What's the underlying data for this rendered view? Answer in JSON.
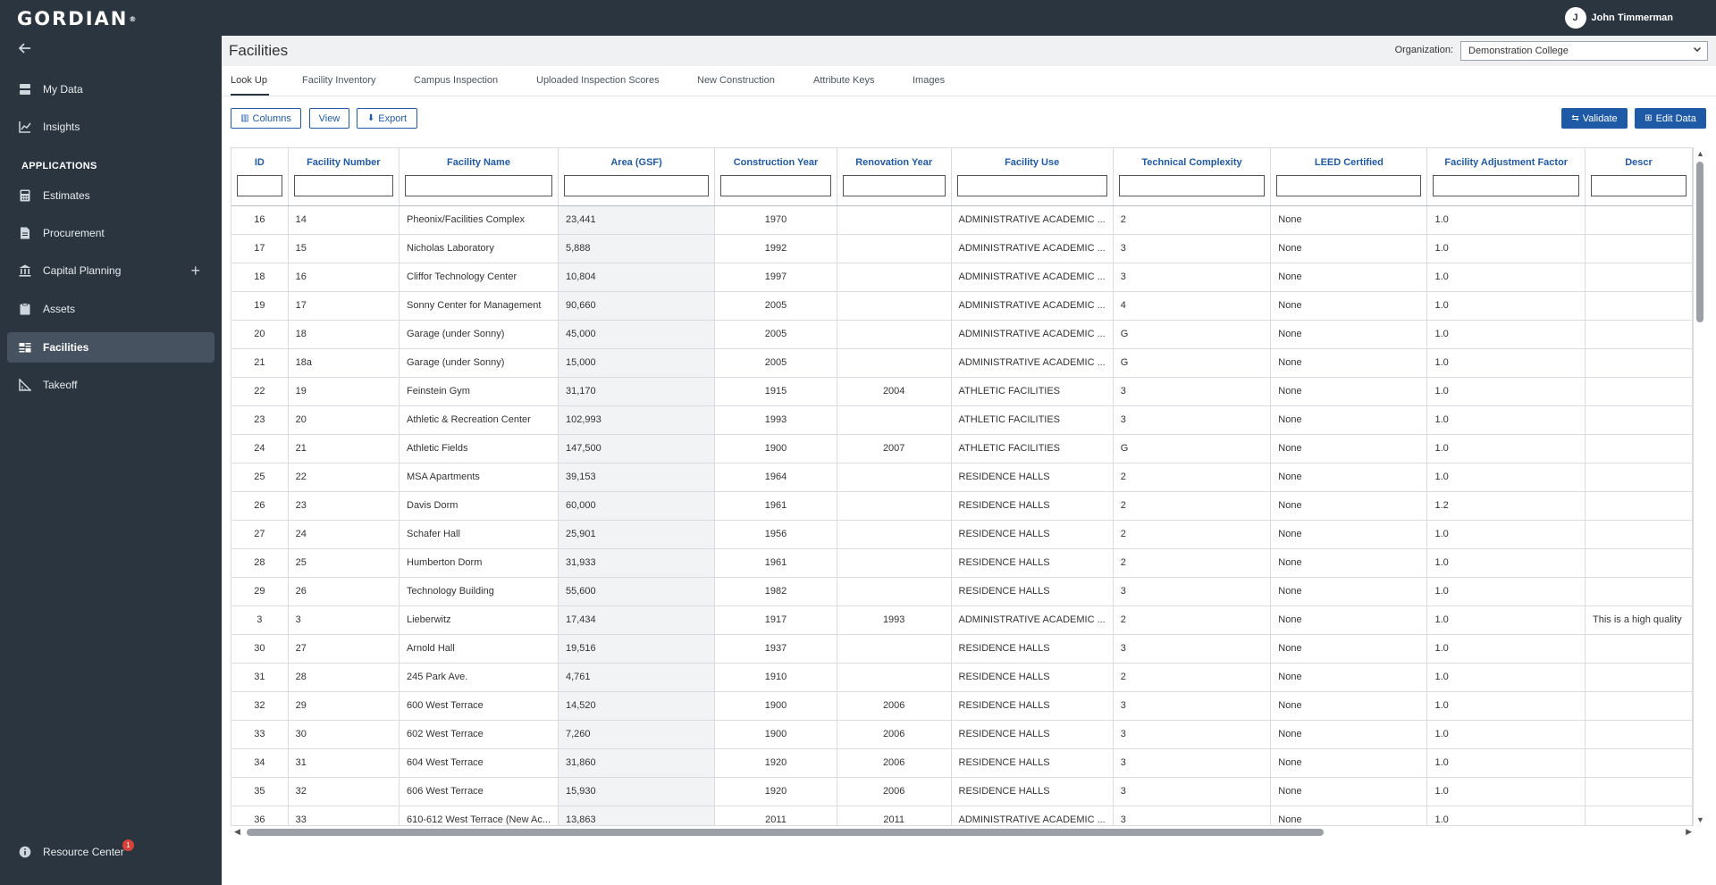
{
  "app": {
    "logo": "GORDIAN",
    "logo_mark": "®"
  },
  "user": {
    "initial": "J",
    "name": "John Timmerman"
  },
  "sidebar": {
    "items_top": [
      {
        "label": "My Data",
        "icon": "database-icon"
      },
      {
        "label": "Insights",
        "icon": "line-chart-icon"
      }
    ],
    "section_header": "APPLICATIONS",
    "items_apps": [
      {
        "label": "Estimates",
        "icon": "calculator-icon"
      },
      {
        "label": "Procurement",
        "icon": "document-icon"
      },
      {
        "label": "Capital Planning",
        "icon": "bank-icon"
      },
      {
        "label": "Assets",
        "icon": "clipboard-icon"
      },
      {
        "label": "Facilities",
        "icon": "facilities-icon"
      },
      {
        "label": "Takeoff",
        "icon": "ruler-icon"
      }
    ],
    "resource_center": {
      "label": "Resource Center",
      "badge": "1"
    }
  },
  "header": {
    "title": "Facilities",
    "org_label": "Organization:",
    "org_value": "Demonstration College"
  },
  "tabs": [
    {
      "label": "Look Up"
    },
    {
      "label": "Facility Inventory"
    },
    {
      "label": "Campus Inspection"
    },
    {
      "label": "Uploaded Inspection Scores"
    },
    {
      "label": "New Construction"
    },
    {
      "label": "Attribute Keys"
    },
    {
      "label": "Images"
    }
  ],
  "toolbar": {
    "columns": "Columns",
    "view": "View",
    "export": "Export",
    "validate": "Validate",
    "edit_data": "Edit Data"
  },
  "table": {
    "columns": [
      "ID",
      "Facility Number",
      "Facility Name",
      "Area (GSF)",
      "Construction Year",
      "Renovation Year",
      "Facility Use",
      "Technical Complexity",
      "LEED Certified",
      "Facility Adjustment Factor",
      "Descr"
    ],
    "rows": [
      [
        "16",
        "14",
        "Pheonix/Facilities Complex",
        "23,441",
        "1970",
        "",
        "ADMINISTRATIVE ACADEMIC ...",
        "2",
        "None",
        "1.0",
        ""
      ],
      [
        "17",
        "15",
        "Nicholas Laboratory",
        "5,888",
        "1992",
        "",
        "ADMINISTRATIVE ACADEMIC ...",
        "3",
        "None",
        "1.0",
        ""
      ],
      [
        "18",
        "16",
        "Cliffor Technology Center",
        "10,804",
        "1997",
        "",
        "ADMINISTRATIVE ACADEMIC ...",
        "3",
        "None",
        "1.0",
        ""
      ],
      [
        "19",
        "17",
        "Sonny Center for Management",
        "90,660",
        "2005",
        "",
        "ADMINISTRATIVE ACADEMIC ...",
        "4",
        "None",
        "1.0",
        ""
      ],
      [
        "20",
        "18",
        "Garage (under Sonny)",
        "45,000",
        "2005",
        "",
        "ADMINISTRATIVE ACADEMIC ...",
        "G",
        "None",
        "1.0",
        ""
      ],
      [
        "21",
        "18a",
        "Garage (under Sonny)",
        "15,000",
        "2005",
        "",
        "ADMINISTRATIVE ACADEMIC ...",
        "G",
        "None",
        "1.0",
        ""
      ],
      [
        "22",
        "19",
        "Feinstein Gym",
        "31,170",
        "1915",
        "2004",
        "ATHLETIC FACILITIES",
        "3",
        "None",
        "1.0",
        ""
      ],
      [
        "23",
        "20",
        "Athletic & Recreation Center",
        "102,993",
        "1993",
        "",
        "ATHLETIC FACILITIES",
        "3",
        "None",
        "1.0",
        ""
      ],
      [
        "24",
        "21",
        "Athletic Fields",
        "147,500",
        "1900",
        "2007",
        "ATHLETIC FACILITIES",
        "G",
        "None",
        "1.0",
        ""
      ],
      [
        "25",
        "22",
        "MSA Apartments",
        "39,153",
        "1964",
        "",
        "RESIDENCE HALLS",
        "2",
        "None",
        "1.0",
        ""
      ],
      [
        "26",
        "23",
        "Davis Dorm",
        "60,000",
        "1961",
        "",
        "RESIDENCE HALLS",
        "2",
        "None",
        "1.2",
        ""
      ],
      [
        "27",
        "24",
        "Schafer Hall",
        "25,901",
        "1956",
        "",
        "RESIDENCE HALLS",
        "2",
        "None",
        "1.0",
        ""
      ],
      [
        "28",
        "25",
        "Humberton Dorm",
        "31,933",
        "1961",
        "",
        "RESIDENCE HALLS",
        "2",
        "None",
        "1.0",
        ""
      ],
      [
        "29",
        "26",
        "Technology Building",
        "55,600",
        "1982",
        "",
        "RESIDENCE HALLS",
        "3",
        "None",
        "1.0",
        ""
      ],
      [
        "3",
        "3",
        "Lieberwitz",
        "17,434",
        "1917",
        "1993",
        "ADMINISTRATIVE ACADEMIC ...",
        "2",
        "None",
        "1.0",
        "This is a high quality"
      ],
      [
        "30",
        "27",
        "Arnold Hall",
        "19,516",
        "1937",
        "",
        "RESIDENCE HALLS",
        "3",
        "None",
        "1.0",
        ""
      ],
      [
        "31",
        "28",
        "245 Park Ave.",
        "4,761",
        "1910",
        "",
        "RESIDENCE HALLS",
        "2",
        "None",
        "1.0",
        ""
      ],
      [
        "32",
        "29",
        "600 West Terrace",
        "14,520",
        "1900",
        "2006",
        "RESIDENCE HALLS",
        "3",
        "None",
        "1.0",
        ""
      ],
      [
        "33",
        "30",
        "602 West Terrace",
        "7,260",
        "1900",
        "2006",
        "RESIDENCE HALLS",
        "3",
        "None",
        "1.0",
        ""
      ],
      [
        "34",
        "31",
        "604 West Terrace",
        "31,860",
        "1920",
        "2006",
        "RESIDENCE HALLS",
        "3",
        "None",
        "1.0",
        ""
      ],
      [
        "35",
        "32",
        "606 West Terrace",
        "15,930",
        "1920",
        "2006",
        "RESIDENCE HALLS",
        "3",
        "None",
        "1.0",
        ""
      ],
      [
        "36",
        "33",
        "610-612 West Terrace (New Ac...",
        "13,863",
        "2011",
        "2011",
        "ADMINISTRATIVE ACADEMIC ...",
        "3",
        "None",
        "1.0",
        ""
      ]
    ]
  },
  "colors": {
    "sidebar_bg": "#2b3540",
    "accent": "#1f5aa6",
    "header_bg": "#f0f1f2"
  }
}
